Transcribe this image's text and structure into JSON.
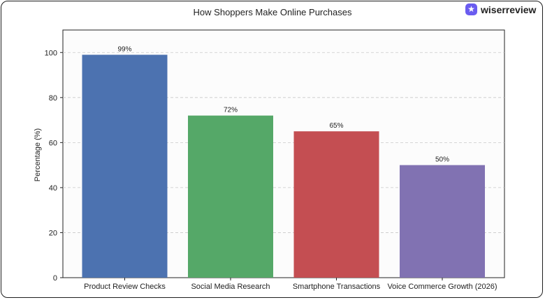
{
  "brand": {
    "name": "wiserreview",
    "icon": "star-badge-icon",
    "color": "#6a5cf0"
  },
  "chart_data": {
    "type": "bar",
    "title": "How Shoppers Make Online Purchases",
    "xlabel": "",
    "ylabel": "Percentage (%)",
    "categories": [
      "Product Review Checks",
      "Social Media Research",
      "Smartphone Transactions",
      "Voice Commerce Growth (2026)"
    ],
    "values": [
      99,
      72,
      65,
      50
    ],
    "data_labels": [
      "99%",
      "72%",
      "65%",
      "50%"
    ],
    "colors": [
      "#4c72b0",
      "#55a868",
      "#c44e52",
      "#8172b2"
    ],
    "ylim": [
      0,
      110
    ],
    "yticks": [
      0,
      20,
      40,
      60,
      80,
      100
    ],
    "grid": "horizontal-dashed",
    "legend": "none"
  }
}
